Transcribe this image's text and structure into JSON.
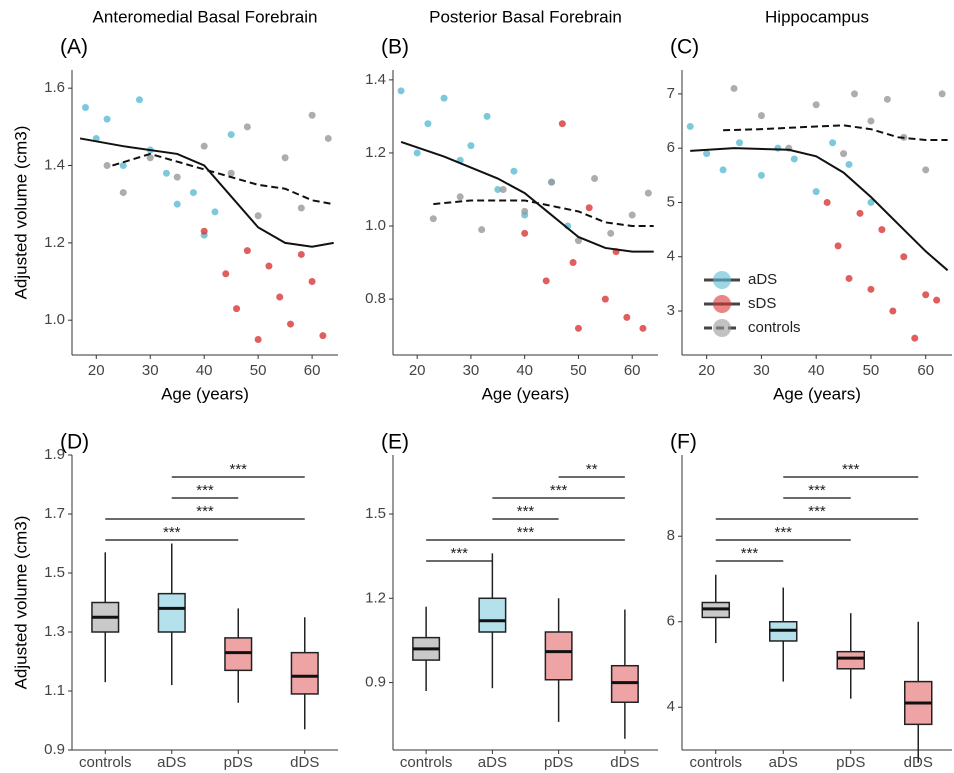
{
  "chart_data": [
    {
      "type": "scatter",
      "title": "Anteromedial Basal Forebrain",
      "panel_label": "(A)",
      "xlabel": "Age (years)",
      "ylabel": "Adjusted volume (cm3)",
      "xlim": [
        15.5,
        64.8
      ],
      "xticks": [
        20,
        30,
        40,
        50,
        60
      ],
      "ylim": [
        0.91,
        1.647
      ],
      "yticks": [
        {
          "value": 1.0,
          "label": "1.0"
        },
        1.2,
        1.4,
        1.6
      ],
      "series": [
        {
          "name": "aDS",
          "color": "#5bbcd6",
          "x": [
            18,
            20,
            22,
            25,
            28,
            30,
            33,
            35,
            38,
            40,
            42,
            45
          ],
          "values": [
            1.55,
            1.47,
            1.52,
            1.4,
            1.57,
            1.44,
            1.38,
            1.3,
            1.33,
            1.22,
            1.28,
            1.48
          ]
        },
        {
          "name": "sDS",
          "color": "#d93636",
          "x": [
            40,
            44,
            46,
            48,
            50,
            52,
            54,
            56,
            58,
            60,
            62
          ],
          "values": [
            1.23,
            1.12,
            1.03,
            1.18,
            0.95,
            1.14,
            1.06,
            0.99,
            1.17,
            1.1,
            0.96
          ]
        },
        {
          "name": "controls",
          "color": "#999999",
          "x": [
            22,
            25,
            30,
            35,
            40,
            45,
            48,
            50,
            55,
            58,
            60,
            63
          ],
          "values": [
            1.4,
            1.33,
            1.42,
            1.37,
            1.45,
            1.38,
            1.5,
            1.27,
            1.42,
            1.29,
            1.53,
            1.47
          ]
        }
      ],
      "fits": [
        {
          "style": "solid",
          "x": [
            17,
            25,
            35,
            40,
            45,
            50,
            55,
            60,
            64
          ],
          "y": [
            1.47,
            1.45,
            1.43,
            1.4,
            1.32,
            1.24,
            1.2,
            1.19,
            1.2
          ]
        },
        {
          "style": "dashed",
          "x": [
            23,
            30,
            40,
            50,
            55,
            60,
            64
          ],
          "y": [
            1.4,
            1.43,
            1.39,
            1.35,
            1.34,
            1.31,
            1.3
          ]
        }
      ]
    },
    {
      "type": "scatter",
      "title": "Posterior Basal Forebrain",
      "panel_label": "(B)",
      "xlabel": "Age (years)",
      "xlim": [
        15.5,
        64.8
      ],
      "xticks": [
        20,
        30,
        40,
        50,
        60
      ],
      "ylim": [
        0.647,
        1.427
      ],
      "yticks": [
        0.8,
        {
          "value": 1.0,
          "label": "1.0"
        },
        1.2,
        1.4
      ],
      "series": [
        {
          "name": "aDS",
          "color": "#5bbcd6",
          "x": [
            17,
            20,
            22,
            25,
            28,
            30,
            33,
            35,
            38,
            40,
            45,
            48
          ],
          "values": [
            1.37,
            1.2,
            1.28,
            1.35,
            1.18,
            1.22,
            1.3,
            1.1,
            1.15,
            1.03,
            1.12,
            1.0
          ]
        },
        {
          "name": "sDS",
          "color": "#d93636",
          "x": [
            40,
            44,
            47,
            49,
            50,
            52,
            55,
            57,
            59,
            62
          ],
          "values": [
            0.98,
            0.85,
            1.28,
            0.9,
            0.72,
            1.05,
            0.8,
            0.93,
            0.75,
            0.72
          ]
        },
        {
          "name": "controls",
          "color": "#999999",
          "x": [
            23,
            28,
            32,
            36,
            40,
            45,
            50,
            53,
            56,
            60,
            63
          ],
          "values": [
            1.02,
            1.08,
            0.99,
            1.1,
            1.04,
            1.12,
            0.96,
            1.13,
            0.98,
            1.03,
            1.09
          ]
        }
      ],
      "fits": [
        {
          "style": "solid",
          "x": [
            17,
            25,
            35,
            40,
            45,
            50,
            55,
            60,
            64
          ],
          "y": [
            1.23,
            1.19,
            1.13,
            1.09,
            1.03,
            0.97,
            0.94,
            0.93,
            0.93
          ]
        },
        {
          "style": "dashed",
          "x": [
            23,
            30,
            40,
            50,
            55,
            60,
            64
          ],
          "y": [
            1.06,
            1.07,
            1.07,
            1.04,
            1.01,
            1.0,
            1.0
          ]
        }
      ]
    },
    {
      "type": "scatter",
      "title": "Hippocampus",
      "panel_label": "(C)",
      "xlabel": "Age (years)",
      "xlim": [
        15.5,
        64.8
      ],
      "xticks": [
        20,
        30,
        40,
        50,
        60
      ],
      "ylim": [
        2.19,
        7.44
      ],
      "yticks": [
        3,
        4,
        5,
        6,
        7
      ],
      "legend": "lower left",
      "series": [
        {
          "name": "aDS",
          "color": "#5bbcd6",
          "line": "solid",
          "x": [
            17,
            20,
            23,
            26,
            30,
            33,
            36,
            40,
            43,
            46,
            50
          ],
          "values": [
            6.4,
            5.9,
            5.6,
            6.1,
            5.5,
            6.0,
            5.8,
            5.2,
            6.1,
            5.7,
            5.0
          ]
        },
        {
          "name": "sDS",
          "color": "#d93636",
          "line": "solid",
          "x": [
            42,
            44,
            46,
            48,
            50,
            52,
            54,
            56,
            58,
            60,
            62
          ],
          "values": [
            5.0,
            4.2,
            3.6,
            4.8,
            3.4,
            4.5,
            3.0,
            4.0,
            2.5,
            3.3,
            3.2
          ]
        },
        {
          "name": "controls",
          "color": "#999999",
          "line": "dashed",
          "x": [
            25,
            30,
            35,
            40,
            45,
            47,
            50,
            53,
            56,
            60,
            63
          ],
          "values": [
            7.1,
            6.6,
            6.0,
            6.8,
            5.9,
            7.0,
            6.5,
            6.9,
            6.2,
            5.6,
            7.0
          ]
        }
      ],
      "fits": [
        {
          "style": "solid",
          "x": [
            17,
            25,
            35,
            40,
            45,
            50,
            55,
            60,
            64
          ],
          "y": [
            5.95,
            6.0,
            5.97,
            5.85,
            5.55,
            5.1,
            4.6,
            4.1,
            3.75
          ]
        },
        {
          "style": "dashed",
          "x": [
            23,
            30,
            40,
            45,
            50,
            55,
            60,
            64
          ],
          "y": [
            6.33,
            6.35,
            6.4,
            6.42,
            6.35,
            6.2,
            6.15,
            6.15
          ]
        }
      ]
    },
    {
      "type": "box",
      "panel_label": "(D)",
      "ylabel": "Adjusted volume (cm3)",
      "ylim": [
        0.9,
        1.9
      ],
      "yticks": [
        0.9,
        1.1,
        1.3,
        1.5,
        1.7,
        1.9
      ],
      "categories": [
        "controls",
        "aDS",
        "pDS",
        "dDS"
      ],
      "colors": [
        "#888888",
        "#5bbcd6",
        "#d93636",
        "#d93636"
      ],
      "boxes": [
        {
          "min": 1.13,
          "q1": 1.3,
          "median": 1.35,
          "q3": 1.4,
          "max": 1.57
        },
        {
          "min": 1.12,
          "q1": 1.3,
          "median": 1.38,
          "q3": 1.43,
          "max": 1.6
        },
        {
          "min": 1.06,
          "q1": 1.17,
          "median": 1.23,
          "q3": 1.28,
          "max": 1.38
        },
        {
          "min": 0.97,
          "q1": 1.09,
          "median": 1.15,
          "q3": 1.23,
          "max": 1.35
        }
      ],
      "brackets": [
        {
          "between": [
            "controls",
            "pDS"
          ],
          "label": "***"
        },
        {
          "between": [
            "controls",
            "dDS"
          ],
          "label": "***"
        },
        {
          "between": [
            "aDS",
            "pDS"
          ],
          "label": "***"
        },
        {
          "between": [
            "aDS",
            "dDS"
          ],
          "label": "***"
        }
      ]
    },
    {
      "type": "box",
      "panel_label": "(E)",
      "ylim": [
        0.66,
        1.71
      ],
      "yticks": [
        0.9,
        1.2,
        1.5
      ],
      "categories": [
        "controls",
        "aDS",
        "pDS",
        "dDS"
      ],
      "colors": [
        "#888888",
        "#5bbcd6",
        "#d93636",
        "#d93636"
      ],
      "boxes": [
        {
          "min": 0.87,
          "q1": 0.98,
          "median": 1.02,
          "q3": 1.06,
          "max": 1.17
        },
        {
          "min": 0.88,
          "q1": 1.08,
          "median": 1.12,
          "q3": 1.2,
          "max": 1.36
        },
        {
          "min": 0.76,
          "q1": 0.91,
          "median": 1.01,
          "q3": 1.08,
          "max": 1.2
        },
        {
          "min": 0.7,
          "q1": 0.83,
          "median": 0.9,
          "q3": 0.96,
          "max": 1.16
        }
      ],
      "brackets": [
        {
          "between": [
            "controls",
            "aDS"
          ],
          "label": "***"
        },
        {
          "between": [
            "controls",
            "dDS"
          ],
          "label": "***"
        },
        {
          "between": [
            "aDS",
            "pDS"
          ],
          "label": "***"
        },
        {
          "between": [
            "aDS",
            "dDS"
          ],
          "label": "***"
        },
        {
          "between": [
            "pDS",
            "dDS"
          ],
          "label": "**"
        }
      ]
    },
    {
      "type": "box",
      "panel_label": "(F)",
      "ylim": [
        3.0,
        9.9
      ],
      "yticks": [
        4,
        6,
        8
      ],
      "categories": [
        "controls",
        "aDS",
        "pDS",
        "dDS"
      ],
      "colors": [
        "#888888",
        "#5bbcd6",
        "#d93636",
        "#d93636"
      ],
      "boxes": [
        {
          "min": 5.5,
          "q1": 6.1,
          "median": 6.3,
          "q3": 6.45,
          "max": 7.1
        },
        {
          "min": 4.6,
          "q1": 5.55,
          "median": 5.8,
          "q3": 6.0,
          "max": 6.8
        },
        {
          "min": 4.2,
          "q1": 4.9,
          "median": 5.15,
          "q3": 5.3,
          "max": 6.2
        },
        {
          "min": 2.7,
          "q1": 3.6,
          "median": 4.1,
          "q3": 4.6,
          "max": 6.0
        }
      ],
      "brackets": [
        {
          "between": [
            "controls",
            "aDS"
          ],
          "label": "***"
        },
        {
          "between": [
            "controls",
            "pDS"
          ],
          "label": "***"
        },
        {
          "between": [
            "controls",
            "dDS"
          ],
          "label": "***"
        },
        {
          "between": [
            "aDS",
            "pDS"
          ],
          "label": "***"
        },
        {
          "between": [
            "aDS",
            "dDS"
          ],
          "label": "***"
        }
      ]
    }
  ]
}
